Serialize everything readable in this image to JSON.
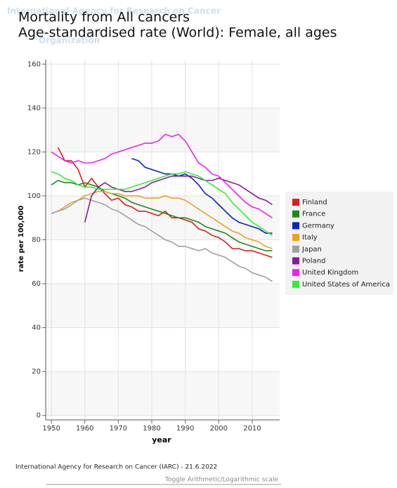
{
  "watermark": {
    "line1": "International Agency for Research on Cancer",
    "line2": "Organization"
  },
  "footer": {
    "source": "International Agency for Research on Cancer (IARC) - 21.6.2022",
    "toggle": "Toggle Arithmetic/Logarithmic scale"
  },
  "chart_data": {
    "type": "line",
    "title": "Mortality from All cancers",
    "subtitle": "Age-standardised rate (World): Female, all ages",
    "x_label": "year",
    "y_label": "rate per 100,000",
    "x": [
      1950,
      1952,
      1954,
      1956,
      1958,
      1960,
      1962,
      1964,
      1966,
      1968,
      1970,
      1972,
      1974,
      1976,
      1978,
      1980,
      1982,
      1984,
      1986,
      1988,
      1990,
      1992,
      1994,
      1996,
      1998,
      2000,
      2002,
      2004,
      2006,
      2008,
      2010,
      2012,
      2014,
      2016
    ],
    "xlim": [
      1948.3,
      2018.2
    ],
    "xticks": [
      1950,
      1960,
      1970,
      1980,
      1990,
      2000,
      2010
    ],
    "ylim": [
      -2,
      162
    ],
    "yticks": [
      0,
      20,
      40,
      60,
      80,
      100,
      120,
      140,
      160
    ],
    "grid": true,
    "series": [
      {
        "name": "Finland",
        "color": "#e31a1c",
        "values": [
          null,
          122,
          116,
          116,
          112,
          104,
          108,
          104,
          101,
          98,
          99,
          96,
          95,
          93,
          93,
          92,
          91,
          93,
          90,
          90,
          89,
          88,
          85,
          84,
          82,
          81,
          79,
          76,
          76,
          75,
          75,
          74,
          73,
          72
        ]
      },
      {
        "name": "France",
        "color": "#1a8a1a",
        "values": [
          105,
          107,
          106,
          106,
          105,
          106,
          105,
          104,
          102,
          101,
          100,
          99,
          97,
          96,
          95,
          94,
          93,
          92,
          91,
          90,
          90,
          89,
          88,
          86,
          85,
          84,
          83,
          81,
          79,
          78,
          77,
          76,
          75,
          75
        ]
      },
      {
        "name": "Germany",
        "color": "#0a1fd0",
        "values": [
          null,
          null,
          null,
          null,
          null,
          null,
          null,
          null,
          null,
          null,
          null,
          null,
          117,
          116,
          113,
          112,
          111,
          110,
          110,
          109,
          110,
          108,
          105,
          101,
          99,
          96,
          93,
          90,
          88,
          87,
          86,
          85,
          83,
          83
        ]
      },
      {
        "name": "Italy",
        "color": "#f0a020",
        "values": [
          92,
          93,
          95,
          97,
          98,
          100,
          101,
          102,
          102,
          101,
          101,
          100,
          100,
          100,
          99,
          99,
          99,
          100,
          99,
          99,
          98,
          96,
          94,
          92,
          90,
          88,
          86,
          84,
          83,
          81,
          80,
          79,
          77,
          76
        ]
      },
      {
        "name": "Japan",
        "color": "#a0a0a0",
        "values": [
          92,
          93,
          94,
          96,
          98,
          99,
          98,
          97,
          96,
          94,
          93,
          91,
          89,
          87,
          86,
          84,
          82,
          80,
          79,
          77,
          77,
          76,
          75,
          76,
          74,
          73,
          72,
          70,
          68,
          67,
          65,
          64,
          63,
          61
        ]
      },
      {
        "name": "Poland",
        "color": "#8a1a9a",
        "values": [
          null,
          null,
          null,
          null,
          null,
          88,
          100,
          104,
          106,
          104,
          103,
          102,
          102,
          103,
          104,
          106,
          107,
          108,
          109,
          109,
          109,
          109,
          108,
          107,
          107,
          108,
          107,
          106,
          105,
          103,
          101,
          99,
          98,
          96
        ]
      },
      {
        "name": "United Kingdom",
        "color": "#f020f0",
        "values": [
          120,
          118,
          116,
          115,
          116,
          115,
          115,
          116,
          117,
          119,
          120,
          121,
          122,
          123,
          124,
          124,
          125,
          128,
          127,
          128,
          125,
          120,
          115,
          113,
          110,
          109,
          106,
          103,
          100,
          97,
          95,
          94,
          92,
          90
        ]
      },
      {
        "name": "United States of America",
        "color": "#30f030",
        "values": [
          111,
          110,
          108,
          107,
          105,
          104,
          104,
          103,
          103,
          103,
          103,
          103,
          104,
          105,
          106,
          107,
          108,
          109,
          110,
          110,
          111,
          110,
          109,
          107,
          105,
          103,
          101,
          97,
          94,
          91,
          88,
          86,
          84,
          82
        ]
      }
    ]
  }
}
